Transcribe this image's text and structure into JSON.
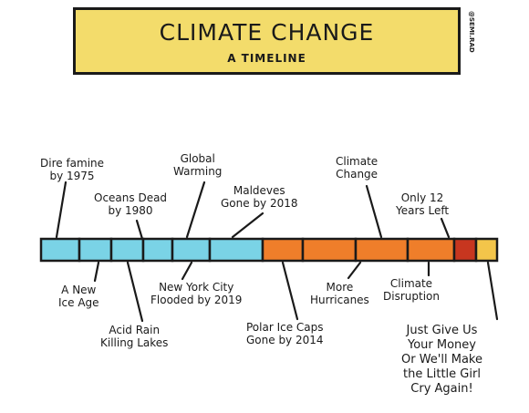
{
  "header": {
    "title": "CLIMATE CHANGE",
    "subtitle": "A TIMELINE",
    "credit": "@SEMI.RAD"
  },
  "colors": {
    "banner": "#f3dc6b",
    "cold": "#7ad3e6",
    "warm": "#ef7e2a",
    "hot": "#c7361f",
    "final": "#f3c54a"
  },
  "labels_above": [
    {
      "id": "dire-famine",
      "text": [
        "Dire famine",
        "by 1975"
      ]
    },
    {
      "id": "oceans-dead",
      "text": [
        "Oceans Dead",
        "by 1980"
      ]
    },
    {
      "id": "global-warming",
      "text": [
        "Global",
        "Warming"
      ]
    },
    {
      "id": "maldeves",
      "text": [
        "Maldeves",
        "Gone by 2018"
      ]
    },
    {
      "id": "climate-change",
      "text": [
        "Climate",
        "Change"
      ]
    },
    {
      "id": "only-12-years",
      "text": [
        "Only 12",
        "Years Left"
      ]
    }
  ],
  "labels_below": [
    {
      "id": "new-ice-age",
      "text": [
        "A New",
        "Ice Age"
      ]
    },
    {
      "id": "acid-rain",
      "text": [
        "Acid Rain",
        "Killing Lakes"
      ]
    },
    {
      "id": "new-york",
      "text": [
        "New York City",
        "Flooded by 2019"
      ]
    },
    {
      "id": "polar-ice",
      "text": [
        "Polar Ice Caps",
        "Gone by 2014"
      ]
    },
    {
      "id": "more-hurricanes",
      "text": [
        "More",
        "Hurricanes"
      ]
    },
    {
      "id": "climate-disruption",
      "text": [
        "Climate",
        "Disruption"
      ]
    },
    {
      "id": "give-money",
      "text": [
        "Just Give Us",
        "Your Money",
        "Or We'll Make",
        "the Little Girl",
        "Cry Again!"
      ]
    }
  ]
}
